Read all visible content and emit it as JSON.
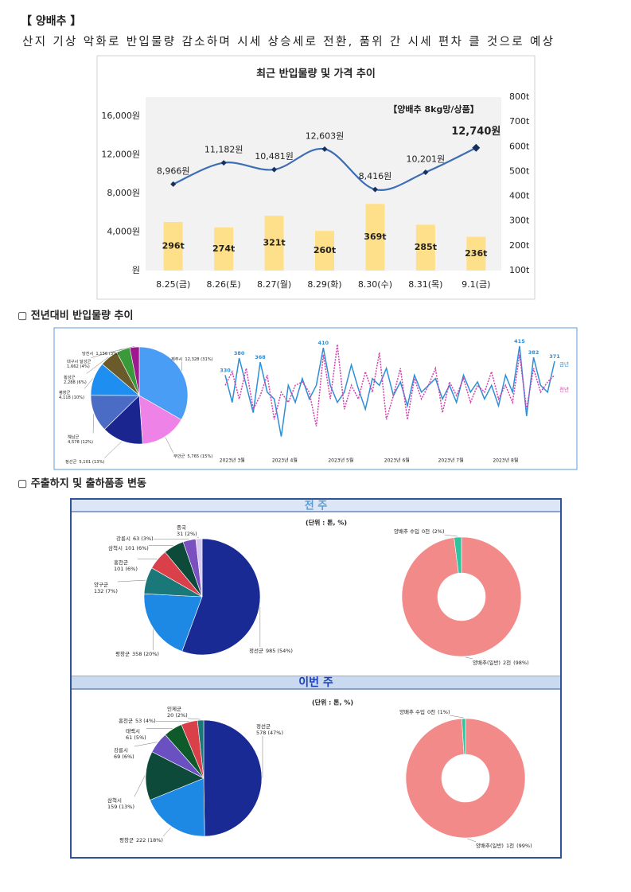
{
  "page": {
    "title": "【 양배추 】",
    "subtitle": "산지 기상 악화로 반입물량 감소하며 시세 상승세로 전환, 품위 간 시세 편차 클 것으로 예상",
    "section2": "▢ 전년대비 반입물량 추이",
    "section3": "▢ 주출하지 및 출하품종 변동",
    "week_prev": "전 주",
    "week_this": "이번 주"
  },
  "chart_data": [
    {
      "type": "bar-line",
      "title": "최근 반입물량 및 가격 추이",
      "annotation": "【양배추 8kg망/상품】",
      "categories": [
        "8.25(금)",
        "8.26(토)",
        "8.27(월)",
        "8.29(화)",
        "8.30(수)",
        "8.31(목)",
        "9.1(금)"
      ],
      "series": [
        {
          "type": "bar",
          "axis": "y2",
          "color": "#ffe08a",
          "values": [
            296,
            274,
            321,
            260,
            369,
            285,
            236
          ],
          "value_labels": [
            "296t",
            "274t",
            "321t",
            "260t",
            "369t",
            "285t",
            "236t"
          ]
        },
        {
          "type": "line",
          "color": "#3d6db5",
          "marker_color": "#17305e",
          "values": [
            8966,
            11182,
            10481,
            12603,
            8416,
            10201,
            12740
          ],
          "value_labels": [
            "8,966원",
            "11,182원",
            "10,481원",
            "12,603원",
            "8,416원",
            "10,201원",
            "12,740원"
          ]
        }
      ],
      "ylim": [
        0,
        18000
      ],
      "yticks": [
        {
          "value": 0,
          "label": "원"
        },
        {
          "value": 4000,
          "label": "4,000원"
        },
        {
          "value": 8000,
          "label": "8,000원"
        },
        {
          "value": 12000,
          "label": "12,000원"
        },
        {
          "value": 16000,
          "label": "16,000원"
        }
      ],
      "y2lim": [
        100,
        800
      ],
      "y2ticks": [
        {
          "value": 100,
          "label": "100t"
        },
        {
          "value": 200,
          "label": "200t"
        },
        {
          "value": 300,
          "label": "300t"
        },
        {
          "value": 400,
          "label": "400t"
        },
        {
          "value": 500,
          "label": "500t"
        },
        {
          "value": 600,
          "label": "600t"
        },
        {
          "value": 700,
          "label": "700t"
        },
        {
          "value": 800,
          "label": "800t"
        }
      ]
    },
    {
      "type": "pie",
      "categories": [
        "제주시",
        "무안군",
        "정선군",
        "해남군",
        "평창군",
        "횡성군",
        "대구시 달성군",
        "당진시"
      ],
      "values": [
        12328,
        5765,
        5101,
        4578,
        4118,
        2288,
        1662,
        1156
      ],
      "value_labels": [
        "12,328 (31%)",
        "5,765 (15%)",
        "5,101 (13%)",
        "4,578 (12%)",
        "4,118 (10%)",
        "2,288 (6%)",
        "1,662 (4%)",
        "1,156 (3%)"
      ],
      "colors": [
        "#4a9df5",
        "#ee82e6",
        "#1a2590",
        "#4a6cc4",
        "#1e8ff0",
        "#6b5a2a",
        "#3a9a3a",
        "#a01890"
      ]
    },
    {
      "type": "line",
      "series": [
        {
          "name": "금년",
          "color": "#2e8fd6",
          "dash": false,
          "values": [
            330,
            250,
            380,
            300,
            220,
            368,
            280,
            260,
            150,
            300,
            250,
            320,
            260,
            300,
            410,
            300,
            250,
            280,
            360,
            290,
            230,
            320,
            300,
            350,
            270,
            310,
            240,
            330,
            280,
            300,
            320,
            260,
            300,
            250,
            330,
            280,
            310,
            260,
            300,
            240,
            330,
            280,
            415,
            210,
            382,
            300,
            280,
            371
          ],
          "value_labels": [
            "330",
            null,
            "380",
            null,
            null,
            "368",
            null,
            null,
            null,
            null,
            null,
            null,
            null,
            null,
            "410",
            null,
            null,
            null,
            null,
            null,
            null,
            null,
            null,
            null,
            null,
            null,
            null,
            null,
            null,
            null,
            null,
            null,
            null,
            null,
            null,
            null,
            null,
            null,
            null,
            null,
            null,
            null,
            "415",
            null,
            "382",
            null,
            null,
            "371"
          ]
        },
        {
          "name": "전년",
          "color": "#d63fae",
          "dash": true,
          "values": [
            300,
            340,
            260,
            350,
            230,
            270,
            330,
            200,
            280,
            250,
            300,
            310,
            280,
            180,
            390,
            260,
            420,
            230,
            300,
            260,
            340,
            280,
            396,
            200,
            270,
            350,
            200,
            320,
            260,
            300,
            350,
            220,
            310,
            270,
            320,
            250,
            300,
            280,
            340,
            260,
            300,
            250,
            390,
            230,
            350,
            280,
            310,
            330
          ]
        }
      ],
      "xlim": [
        0,
        47
      ],
      "xticks": [
        {
          "value": 1,
          "label": "2023년 3월"
        },
        {
          "value": 8.5,
          "label": "2023년 4월"
        },
        {
          "value": 16.5,
          "label": "2023년 5월"
        },
        {
          "value": 24.5,
          "label": "2023년 6월"
        },
        {
          "value": 32.2,
          "label": "2023년 7월"
        },
        {
          "value": 40,
          "label": "2023년 8월"
        }
      ],
      "ylim": [
        100,
        450
      ]
    },
    {
      "type": "pie",
      "subtitle": "(단위 : 톤, %)",
      "categories": [
        "정선군",
        "평창군",
        "양구군",
        "홍천군",
        "삼척시",
        "강릉시",
        "중국"
      ],
      "values": [
        985,
        358,
        132,
        101,
        101,
        63,
        31
      ],
      "value_labels": [
        "985 (54%)",
        "358 (20%)",
        "132 (7%)",
        "101 (6%)",
        "101 (6%)",
        "63 (3%)",
        "31 (2%)"
      ],
      "colors": [
        "#1a2a94",
        "#1e88e5",
        "#1a7878",
        "#d9404a",
        "#0d4a3a",
        "#7a50c0",
        "#d8c8f0"
      ]
    },
    {
      "type": "donut",
      "categories": [
        "양배추(일반)",
        "양배추 수입"
      ],
      "amount_labels": [
        "2천",
        "0천"
      ],
      "values": [
        98,
        2
      ],
      "value_labels": [
        "(98%)",
        "(2%)"
      ],
      "colors": [
        "#f28a8a",
        "#2ec4a0"
      ]
    },
    {
      "type": "pie",
      "subtitle": "(단위 : 톤, %)",
      "categories": [
        "정선군",
        "평창군",
        "삼척시",
        "강릉시",
        "태백시",
        "홍천군",
        "인제군"
      ],
      "values": [
        578,
        222,
        159,
        69,
        61,
        53,
        20
      ],
      "value_labels": [
        "578 (47%)",
        "222 (18%)",
        "159 (13%)",
        "69 (6%)",
        "61 (5%)",
        "53 (4%)",
        "20 (2%)"
      ],
      "colors": [
        "#1a2a94",
        "#1e88e5",
        "#0d4a3a",
        "#6a50c0",
        "#0f5a2a",
        "#d9404a",
        "#1a7878"
      ]
    },
    {
      "type": "donut",
      "categories": [
        "양배추(일반)",
        "양배추 수입"
      ],
      "amount_labels": [
        "1천",
        "0천"
      ],
      "values": [
        99,
        1
      ],
      "value_labels": [
        "(99%)",
        "(1%)"
      ],
      "colors": [
        "#f28a8a",
        "#2ec4a0"
      ]
    }
  ]
}
